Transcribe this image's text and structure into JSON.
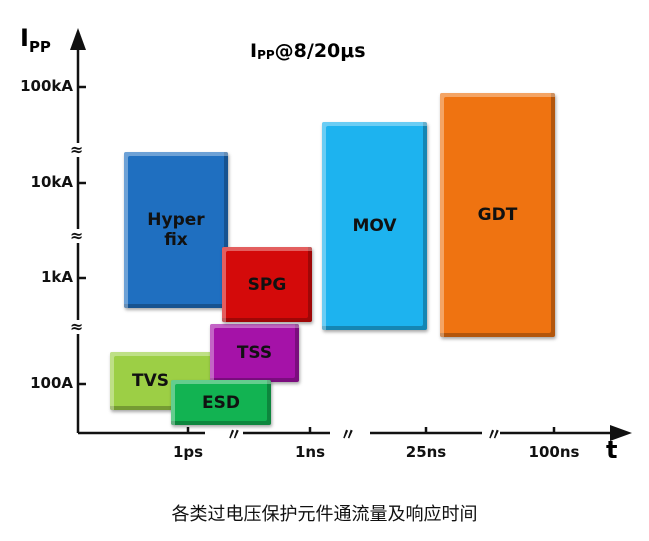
{
  "title": {
    "main": "I",
    "sub": "PP",
    "rest": "@8/20μs"
  },
  "y_axis": {
    "name": "I",
    "name_sub": "PP",
    "ticks": [
      "100kA",
      "10kA",
      "1kA",
      "100A"
    ]
  },
  "x_axis": {
    "name": "t",
    "ticks": [
      "1ps",
      "1ns",
      "25ns",
      "100ns"
    ]
  },
  "devices": [
    {
      "label": "Hyper fix",
      "color": "#1f6fc0"
    },
    {
      "label": "SPG",
      "color": "#d40a0a"
    },
    {
      "label": "MOV",
      "color": "#1db3ef"
    },
    {
      "label": "GDT",
      "color": "#ef7311"
    },
    {
      "label": "TSS",
      "color": "#a512a8"
    },
    {
      "label": "TVS",
      "color": "#9ccf45"
    },
    {
      "label": "ESD",
      "color": "#12b352"
    }
  ],
  "caption": "各类过电压保护元件通流量及响应时间"
}
